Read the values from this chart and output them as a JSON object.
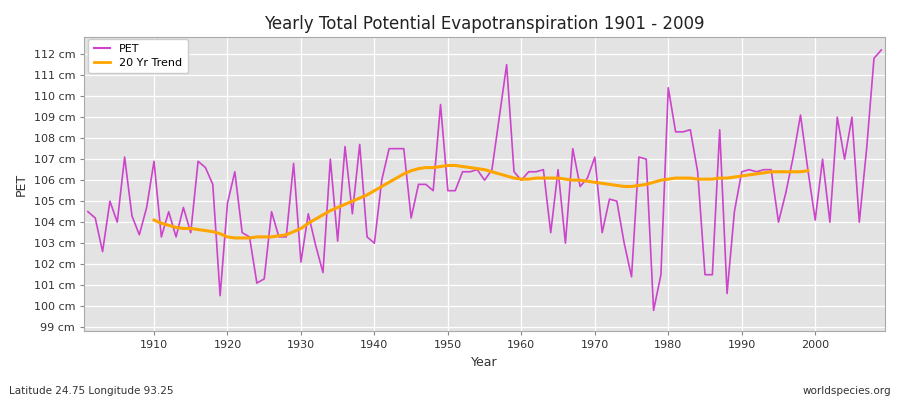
{
  "title": "Yearly Total Potential Evapotranspiration 1901 - 2009",
  "xlabel": "Year",
  "ylabel": "PET",
  "footnote_left": "Latitude 24.75 Longitude 93.25",
  "footnote_right": "worldspecies.org",
  "pet_color": "#CC44CC",
  "trend_color": "#FFA500",
  "bg_color": "#FFFFFF",
  "plot_bg_color": "#E8E8E8",
  "ylim": [
    98.8,
    112.8
  ],
  "ytick_labels": [
    "99 cm",
    "100 cm",
    "101 cm",
    "102 cm",
    "103 cm",
    "104 cm",
    "105 cm",
    "106 cm",
    "107 cm",
    "108 cm",
    "109 cm",
    "110 cm",
    "111 cm",
    "112 cm"
  ],
  "ytick_values": [
    99,
    100,
    101,
    102,
    103,
    104,
    105,
    106,
    107,
    108,
    109,
    110,
    111,
    112
  ],
  "years": [
    1901,
    1902,
    1903,
    1904,
    1905,
    1906,
    1907,
    1908,
    1909,
    1910,
    1911,
    1912,
    1913,
    1914,
    1915,
    1916,
    1917,
    1918,
    1919,
    1920,
    1921,
    1922,
    1923,
    1924,
    1925,
    1926,
    1927,
    1928,
    1929,
    1930,
    1931,
    1932,
    1933,
    1934,
    1935,
    1936,
    1937,
    1938,
    1939,
    1940,
    1941,
    1942,
    1943,
    1944,
    1945,
    1946,
    1947,
    1948,
    1949,
    1950,
    1951,
    1952,
    1953,
    1954,
    1955,
    1956,
    1957,
    1958,
    1959,
    1960,
    1961,
    1962,
    1963,
    1964,
    1965,
    1966,
    1967,
    1968,
    1969,
    1970,
    1971,
    1972,
    1973,
    1974,
    1975,
    1976,
    1977,
    1978,
    1979,
    1980,
    1981,
    1982,
    1983,
    1984,
    1985,
    1986,
    1987,
    1988,
    1989,
    1990,
    1991,
    1992,
    1993,
    1994,
    1995,
    1996,
    1997,
    1998,
    1999,
    2000,
    2001,
    2002,
    2003,
    2004,
    2005,
    2006,
    2007,
    2008,
    2009
  ],
  "pet_values": [
    104.5,
    104.2,
    102.6,
    105.0,
    104.0,
    107.1,
    104.3,
    103.4,
    104.7,
    106.9,
    103.3,
    104.5,
    103.3,
    104.7,
    103.5,
    106.9,
    106.6,
    105.8,
    100.5,
    104.9,
    106.4,
    103.5,
    103.3,
    101.1,
    101.3,
    104.5,
    103.3,
    103.3,
    106.8,
    102.1,
    104.4,
    102.9,
    101.6,
    107.0,
    103.1,
    107.6,
    104.4,
    107.7,
    103.3,
    103.0,
    106.0,
    107.5,
    107.5,
    107.5,
    104.2,
    105.8,
    105.8,
    105.5,
    109.6,
    105.5,
    105.5,
    106.4,
    106.4,
    106.5,
    106.0,
    106.5,
    109.0,
    111.5,
    106.4,
    106.0,
    106.4,
    106.4,
    106.5,
    103.5,
    106.5,
    103.0,
    107.5,
    105.7,
    106.1,
    107.1,
    103.5,
    105.1,
    105.0,
    103.0,
    101.4,
    107.1,
    107.0,
    99.8,
    101.5,
    110.4,
    108.3,
    108.3,
    108.4,
    106.4,
    101.5,
    101.5,
    108.4,
    100.6,
    104.5,
    106.4,
    106.5,
    106.4,
    106.5,
    106.5,
    104.0,
    105.4,
    107.1,
    109.1,
    106.5,
    104.1,
    107.0,
    104.0,
    109.0,
    107.0,
    109.0,
    104.0,
    107.5,
    111.8,
    112.2
  ],
  "trend_values": [
    null,
    null,
    null,
    null,
    null,
    null,
    null,
    null,
    null,
    104.1,
    103.95,
    103.85,
    103.75,
    103.7,
    103.7,
    103.65,
    103.6,
    103.55,
    103.45,
    103.3,
    103.25,
    103.25,
    103.25,
    103.3,
    103.3,
    103.3,
    103.35,
    103.4,
    103.55,
    103.7,
    103.95,
    104.15,
    104.35,
    104.55,
    104.7,
    104.85,
    105.0,
    105.15,
    105.3,
    105.5,
    105.7,
    105.9,
    106.1,
    106.3,
    106.45,
    106.55,
    106.6,
    106.6,
    106.65,
    106.7,
    106.7,
    106.65,
    106.6,
    106.55,
    106.5,
    106.4,
    106.3,
    106.2,
    106.1,
    106.05,
    106.05,
    106.1,
    106.1,
    106.1,
    106.1,
    106.05,
    106.0,
    106.0,
    105.95,
    105.9,
    105.85,
    105.8,
    105.75,
    105.7,
    105.7,
    105.75,
    105.8,
    105.9,
    106.0,
    106.05,
    106.1,
    106.1,
    106.1,
    106.05,
    106.05,
    106.05,
    106.1,
    106.1,
    106.15,
    106.2,
    106.25,
    106.3,
    106.35,
    106.4,
    106.4,
    106.4,
    106.4,
    106.4,
    106.45,
    null,
    null,
    null,
    null,
    null,
    null,
    null,
    null,
    null,
    null
  ]
}
